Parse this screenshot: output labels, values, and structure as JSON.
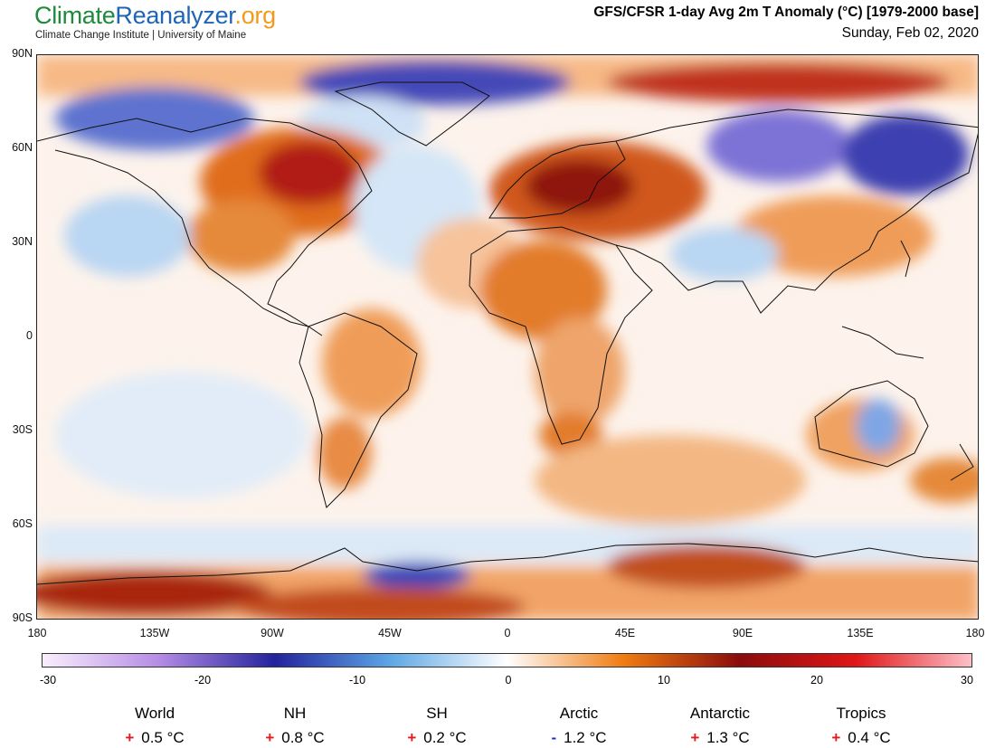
{
  "header": {
    "brand_part1": "Climate",
    "brand_part2": "Reanalyzer",
    "brand_part3": ".org",
    "subtitle": "Climate Change Institute | University of Maine",
    "title": "GFS/CFSR 1-day Avg 2m T Anomaly (°C) [1979-2000 base]",
    "date": "Sunday, Feb 02, 2020"
  },
  "axes": {
    "lat_labels": [
      "90N",
      "60N",
      "30N",
      "0",
      "30S",
      "60S",
      "90S"
    ],
    "lon_labels": [
      "180",
      "135W",
      "90W",
      "45W",
      "0",
      "45E",
      "90E",
      "135E",
      "180"
    ]
  },
  "colorbar": {
    "ticks": [
      "-30",
      "-20",
      "-10",
      "0",
      "10",
      "20",
      "30"
    ],
    "colors": {
      "cold_extreme": "#fbeefc",
      "cold_purple": "#b58ce6",
      "cold_dark": "#23239c",
      "cold_mid": "#5da7e6",
      "neutral": "#ffffff",
      "warm_orange": "#f07c12",
      "warm_dark": "#8a0c0c",
      "warm_red": "#e01616",
      "warm_extreme": "#fdc0c8"
    }
  },
  "stats": [
    {
      "label": "World",
      "sign": "+",
      "value": "0.5 °C"
    },
    {
      "label": "NH",
      "sign": "+",
      "value": "0.8 °C"
    },
    {
      "label": "SH",
      "sign": "+",
      "value": "0.2 °C"
    },
    {
      "label": "Arctic",
      "sign": "-",
      "value": "1.2 °C"
    },
    {
      "label": "Antarctic",
      "sign": "+",
      "value": "1.3 °C"
    },
    {
      "label": "Tropics",
      "sign": "+",
      "value": "0.4 °C"
    }
  ]
}
